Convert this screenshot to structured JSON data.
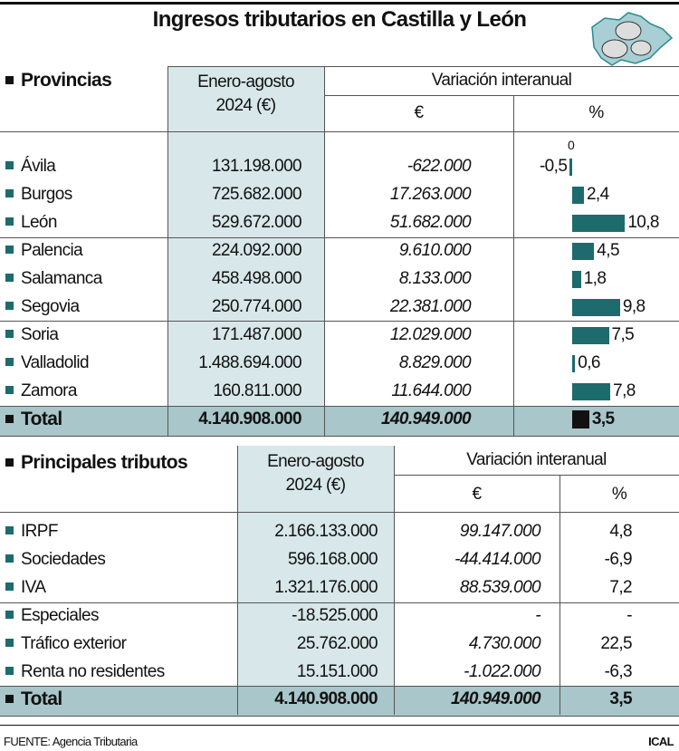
{
  "title": "Ingresos tributarios en Castilla y León",
  "colors": {
    "accent": "#1d6b6d",
    "light_column": "#d8e7e9",
    "total_row": "#a9c6ca",
    "total_bar": "#111111"
  },
  "logo": {
    "icon": "castilla-leon-map-coins-icon"
  },
  "provincias": {
    "heading": "Provincias",
    "col_amount": "Enero-agosto 2024 (€)",
    "col_variation": "Variación interanual",
    "col_euro": "€",
    "col_pct": "%",
    "zero_label": "0",
    "rows": [
      {
        "name": "Ávila",
        "amount": "131.198.000",
        "var_eur": "-622.000",
        "var_pct": "-0,5"
      },
      {
        "name": "Burgos",
        "amount": "725.682.000",
        "var_eur": "17.263.000",
        "var_pct": "2,4"
      },
      {
        "name": "León",
        "amount": "529.672.000",
        "var_eur": "51.682.000",
        "var_pct": "10,8"
      },
      {
        "name": "Palencia",
        "amount": "224.092.000",
        "var_eur": "9.610.000",
        "var_pct": "4,5"
      },
      {
        "name": "Salamanca",
        "amount": "458.498.000",
        "var_eur": "8.133.000",
        "var_pct": "1,8"
      },
      {
        "name": "Segovia",
        "amount": "250.774.000",
        "var_eur": "22.381.000",
        "var_pct": "9,8"
      },
      {
        "name": "Soria",
        "amount": "171.487.000",
        "var_eur": "12.029.000",
        "var_pct": "7,5"
      },
      {
        "name": "Valladolid",
        "amount": "1.488.694.000",
        "var_eur": "8.829.000",
        "var_pct": "0,6"
      },
      {
        "name": "Zamora",
        "amount": "160.811.000",
        "var_eur": "11.644.000",
        "var_pct": "7,8"
      }
    ],
    "total": {
      "name": "Total",
      "amount": "4.140.908.000",
      "var_eur": "140.949.000",
      "var_pct": "3,5"
    }
  },
  "chart_data": {
    "type": "bar",
    "orientation": "horizontal",
    "categories": [
      "Ávila",
      "Burgos",
      "León",
      "Palencia",
      "Salamanca",
      "Segovia",
      "Soria",
      "Valladolid",
      "Zamora",
      "Total"
    ],
    "values": [
      -0.5,
      2.4,
      10.8,
      4.5,
      1.8,
      9.8,
      7.5,
      0.6,
      7.8,
      3.5
    ],
    "xlabel": "%",
    "zero_label": "0"
  },
  "tributos": {
    "heading": "Principales tributos",
    "col_amount": "Enero-agosto 2024 (€)",
    "col_variation": "Variación interanual",
    "col_euro": "€",
    "col_pct": "%",
    "rows": [
      {
        "name": "IRPF",
        "amount": "2.166.133.000",
        "var_eur": "99.147.000",
        "var_pct": "4,8"
      },
      {
        "name": "Sociedades",
        "amount": "596.168.000",
        "var_eur": "-44.414.000",
        "var_pct": "-6,9"
      },
      {
        "name": "IVA",
        "amount": "1.321.176.000",
        "var_eur": "88.539.000",
        "var_pct": "7,2"
      },
      {
        "name": "Especiales",
        "amount": "-18.525.000",
        "var_eur": "-",
        "var_pct": "-"
      },
      {
        "name": "Tráfico exterior",
        "amount": "25.762.000",
        "var_eur": "4.730.000",
        "var_pct": "22,5"
      },
      {
        "name": "Renta no residentes",
        "amount": "15.151.000",
        "var_eur": "-1.022.000",
        "var_pct": "-6,3"
      }
    ],
    "total": {
      "name": "Total",
      "amount": "4.140.908.000",
      "var_eur": "140.949.000",
      "var_pct": "3,5"
    }
  },
  "footer": {
    "source": "FUENTE: Agencia Tributaria",
    "credit": "ICAL"
  }
}
